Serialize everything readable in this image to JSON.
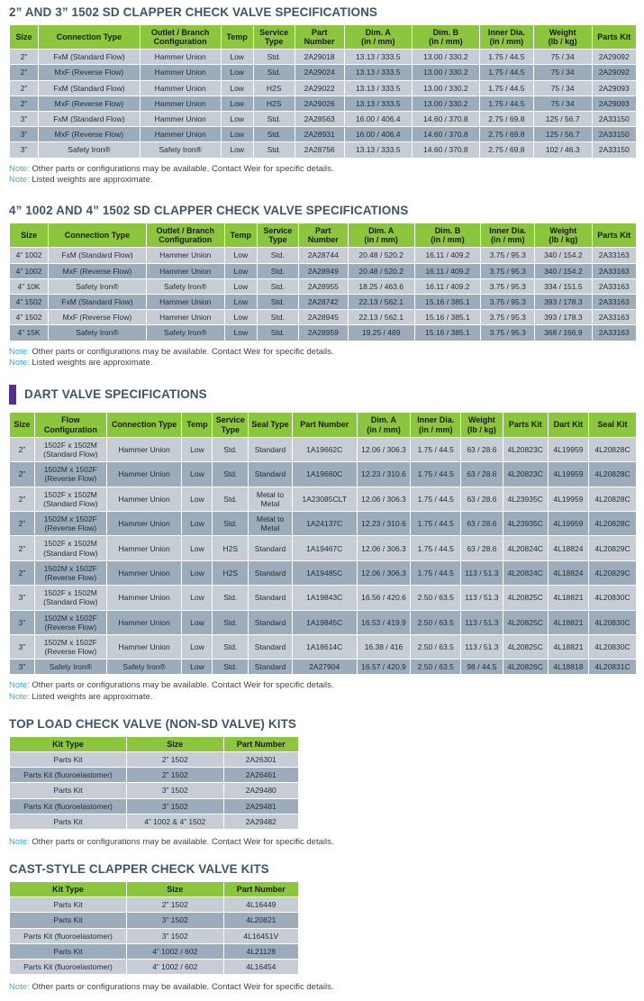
{
  "colors": {
    "header_green": "#8CC63F",
    "row_light": "#C7CDD5",
    "row_dark": "#9DACBB",
    "title": "#3E5568",
    "note_label": "#2BACE2",
    "note_text": "#414042",
    "purple_bar": "#5B2C90"
  },
  "sections": [
    {
      "title": "2” AND 3” 1502 SD CLAPPER CHECK VALVE SPECIFICATIONS",
      "table": {
        "col_widths": [
          4.6,
          16.2,
          12.9,
          5.2,
          6.6,
          7.9,
          10.8,
          10.8,
          8.6,
          9.3,
          7.1
        ],
        "headers": [
          "Size",
          "Connection Type",
          "Outlet / Branch\nConfiguration",
          "Temp",
          "Service\nType",
          "Part\nNumber",
          "Dim. A\n(in / mm)",
          "Dim. B\n(in / mm)",
          "Inner Dia.\n(in / mm)",
          "Weight\n(lb / kg)",
          "Parts Kit"
        ],
        "rows": [
          [
            "2”",
            "FxM (Standard Flow)",
            "Hammer Union",
            "Low",
            "Std.",
            "2A29018",
            "13.13 / 333.5",
            "13.00 / 330.2",
            "1.75 / 44.5",
            "75 / 34",
            "2A29092"
          ],
          [
            "2”",
            "MxF (Reverse Flow)",
            "Hammer Union",
            "Low",
            "Std.",
            "2A29024",
            "13.13 / 333.5",
            "13.00 / 330.2",
            "1.75 / 44.5",
            "75 / 34",
            "2A29092"
          ],
          [
            "2”",
            "FxM (Standard Flow)",
            "Hammer Union",
            "Low",
            "H2S",
            "2A29022",
            "13.13 / 333.5",
            "13.00 / 330.2",
            "1.75 / 44.5",
            "75 / 34",
            "2A29093"
          ],
          [
            "2”",
            "MxF (Reverse Flow)",
            "Hammer Union",
            "Low",
            "H2S",
            "2A29026",
            "13.13 / 333.5",
            "13.00 / 330.2",
            "1.75 / 44.5",
            "75 / 34",
            "2A29093"
          ],
          [
            "3”",
            "FxM (Standard Flow)",
            "Hammer Union",
            "Low",
            "Std.",
            "2A28563",
            "16.00 / 406.4",
            "14.60 / 370.8",
            "2.75 / 69.8",
            "125 / 56.7",
            "2A33150"
          ],
          [
            "3”",
            "MxF (Reverse Flow)",
            "Hammer Union",
            "Low",
            "Std.",
            "2A28931",
            "16.00 / 406.4",
            "14.60 / 370.8",
            "2.75 / 69.8",
            "125 / 56.7",
            "2A33150"
          ],
          [
            "3”",
            "Safety Iron®",
            "Safety Iron®",
            "Low",
            "Std.",
            "2A28756",
            "13.13 / 333.5",
            "14.60 / 370.8",
            "2.75 / 69.8",
            "102 / 46.3",
            "2A33150"
          ]
        ]
      },
      "notes": [
        {
          "label": "Note:",
          "text": " Other parts or configurations may be available. Contact Weir for specific details."
        },
        {
          "label": "Note:",
          "text": " Listed weights are approximate."
        }
      ]
    },
    {
      "title": "4” 1002 AND 4” 1502 SD CLAPPER CHECK VALVE SPECIFICATIONS",
      "table": {
        "col_widths": [
          6.2,
          15.6,
          12.5,
          5.2,
          6.6,
          7.9,
          10.6,
          10.6,
          8.6,
          9.1,
          7.1
        ],
        "headers": [
          "Size",
          "Connection Type",
          "Outlet / Branch\nConfiguration",
          "Temp",
          "Service\nType",
          "Part\nNumber",
          "Dim. A\n(in / mm)",
          "Dim. B\n(in / mm)",
          "Inner Dia.\n(in / mm)",
          "Weight\n(lb / kg)",
          "Parts Kit"
        ],
        "rows": [
          [
            "4” 1002",
            "FxM (Standard Flow)",
            "Hammer Union",
            "Low",
            "Std.",
            "2A28744",
            "20.48 / 520.2",
            "16.11 / 409.2",
            "3.75 / 95.3",
            "340 / 154.2",
            "2A33163"
          ],
          [
            "4” 1002",
            "MxF (Reverse Flow)",
            "Hammer Union",
            "Low",
            "Std.",
            "2A28949",
            "20.48 / 520.2",
            "16.11 / 409.2",
            "3.75 / 95.3",
            "340 / 154.2",
            "2A33163"
          ],
          [
            "4” 10K",
            "Safety Iron®",
            "Safety Iron®",
            "Low",
            "Std.",
            "2A28955",
            "18.25 / 463.6",
            "16.11 / 409.2",
            "3.75 / 95.3",
            "334 / 151.5",
            "2A33163"
          ],
          [
            "4” 1502",
            "FxM (Standard Flow)",
            "Hammer Union",
            "Low",
            "Std.",
            "2A28742",
            "22.13 / 562.1",
            "15.16 / 385.1",
            "3.75 / 95.3",
            "393 / 178.3",
            "2A33163"
          ],
          [
            "4” 1502",
            "MxF (Reverse Flow)",
            "Hammer Union",
            "Low",
            "Std.",
            "2A28945",
            "22.13 / 562.1",
            "15.16 / 385.1",
            "3.75 / 95.3",
            "393 / 178.3",
            "2A33163"
          ],
          [
            "4” 15K",
            "Safety Iron®",
            "Safety Iron®",
            "Low",
            "Std.",
            "2A28959",
            "19.25 / 489",
            "15.16 / 385.1",
            "3.75 / 95.3",
            "368 / 166.9",
            "2A33163"
          ]
        ]
      },
      "notes": [
        {
          "label": "Note:",
          "text": " Other parts or configurations may be available. Contact Weir for specific details."
        },
        {
          "label": "Note:",
          "text": " Listed weights are approximate."
        }
      ]
    },
    {
      "title": "DART VALVE SPECIFICATIONS",
      "table": {
        "col_widths": [
          4.0,
          11.5,
          12.0,
          4.9,
          5.7,
          7.0,
          10.3,
          8.6,
          8.0,
          6.7,
          7.2,
          6.5,
          7.6
        ],
        "headers": [
          "Size",
          "Flow\nConfiguration",
          "Connection Type",
          "Temp",
          "Service\nType",
          "Seal Type",
          "Part Number",
          "Dim. A\n(in / mm)",
          "Inner Dia.\n(in / mm)",
          "Weight\n(lb / kg)",
          "Parts Kit",
          "Dart Kit",
          "Seal Kit"
        ],
        "rows": [
          [
            "2”",
            "1502F x 1502M\n(Standard Flow)",
            "Hammer Union",
            "Low",
            "Std.",
            "Standard",
            "1A19662C",
            "12.06 / 306.3",
            "1.75 / 44.5",
            "63 / 28.6",
            "4L20823C",
            "4L19959",
            "4L20828C"
          ],
          [
            "2”",
            "1502M x 1502F\n(Reverse Flow)",
            "Hammer Union",
            "Low",
            "Std.",
            "Standard",
            "1A19660C",
            "12.23 / 310.6",
            "1.75 / 44.5",
            "63 / 28.6",
            "4L20823C",
            "4L19959",
            "4L20828C"
          ],
          [
            "2”",
            "1502F x 1502M\n(Standard Flow)",
            "Hammer Union",
            "Low",
            "Std.",
            "Metal to\nMetal",
            "1A23085CLT",
            "12.06 / 306.3",
            "1.75 / 44.5",
            "63 / 28.6",
            "4L23935C",
            "4L19959",
            "4L20828C"
          ],
          [
            "2”",
            "1502M x 1502F\n(Reverse Flow)",
            "Hammer Union",
            "Low",
            "Std.",
            "Metal to\nMetal",
            "1A24137C",
            "12.23 / 310.6",
            "1.75 / 44.5",
            "63 / 28.6",
            "4L23935C",
            "4L19959",
            "4L20828C"
          ],
          [
            "2”",
            "1502F x 1502M\n(Standard Flow)",
            "Hammer Union",
            "Low",
            "H2S",
            "Standard",
            "1A19467C",
            "12.06 / 306.3",
            "1.75 / 44.5",
            "63 / 28.6",
            "4L20824C",
            "4L18824",
            "4L20829C"
          ],
          [
            "2”",
            "1502M x 1502F\n(Reverse Flow)",
            "Hammer Union",
            "Low",
            "H2S",
            "Standard",
            "1A19485C",
            "12.06 / 306.3",
            "1.75 / 44.5",
            "113 / 51.3",
            "4L20824C",
            "4L18824",
            "4L20829C"
          ],
          [
            "3”",
            "1502F x 1502M\n(Standard Flow)",
            "Hammer Union",
            "Low",
            "Std.",
            "Standard",
            "1A19843C",
            "16.56 / 420.6",
            "2.50 / 63.5",
            "113 / 51.3",
            "4L20825C",
            "4L18821",
            "4L20830C"
          ],
          [
            "3”",
            "1502M x 1502F\n(Reverse Flow)",
            "Hammer Union",
            "Low",
            "Std.",
            "Standard",
            "1A19845C",
            "16.53 / 419.9",
            "2.50 / 63.5",
            "113 / 51.3",
            "4L20825C",
            "4L18821",
            "4L20830C"
          ],
          [
            "3”",
            "1502M x 1502F\n(Reverse Flow)",
            "Hammer Union",
            "Low",
            "Std.",
            "Standard",
            "1A18614C",
            "16.38 / 416",
            "2.50 / 63.5",
            "113 / 51.3",
            "4L20825C",
            "4L18821",
            "4L20830C"
          ],
          [
            "3”",
            "Safety Iron®",
            "Safety Iron®",
            "Low",
            "Std.",
            "Standard",
            "2A27904",
            "16.57 / 420.9",
            "2.50 / 63.5",
            "98 / 44.5",
            "4L20826C",
            "4L18818",
            "4L20831C"
          ]
        ]
      },
      "notes": [
        {
          "label": "Note:",
          "text": " Other parts or configurations may be available. Contact Weir for specific details."
        },
        {
          "label": "Note:",
          "text": " Listed weights are approximate."
        }
      ]
    },
    {
      "title": "TOP LOAD CHECK VALVE (NON-SD VALVE) KITS",
      "table": {
        "col_widths": [
          40.5,
          33.5,
          26.0
        ],
        "headers": [
          "Kit Type",
          "Size",
          "Part Number"
        ],
        "rows": [
          [
            "Parts Kit",
            "2” 1502",
            "2A26301"
          ],
          [
            "Parts Kit (fluoroelastomer)",
            "2” 1502",
            "2A26461"
          ],
          [
            "Parts Kit",
            "3” 1502",
            "2A29480"
          ],
          [
            "Parts Kit (fluoroelastomer)",
            "3” 1502",
            "2A29481"
          ],
          [
            "Parts Kit",
            "4” 1002 & 4” 1502",
            "2A29482"
          ]
        ]
      },
      "notes": [
        {
          "label": "Note:",
          "text": " Other parts or configurations may be available. Contact Weir for specific details."
        }
      ]
    },
    {
      "title": "CAST-STYLE CLAPPER CHECK VALVE KITS",
      "table": {
        "col_widths": [
          40.5,
          33.5,
          26.0
        ],
        "headers": [
          "Kit Type",
          "Size",
          "Part Number"
        ],
        "rows": [
          [
            "Parts Kit",
            "2” 1502",
            "4L16449"
          ],
          [
            "Parts Kit",
            "3” 1502",
            "4L20821"
          ],
          [
            "Parts Kit (fluoroelastomer)",
            "3” 1502",
            "4L16451V"
          ],
          [
            "Parts Kit",
            "4” 1002 / 602",
            "4L21128"
          ],
          [
            "Parts Kit (fluoroelastomer)",
            "4” 1002 / 602",
            "4L16454"
          ]
        ]
      },
      "notes": [
        {
          "label": "Note:",
          "text": " Other parts or configurations may be available. Contact Weir for specific details."
        }
      ]
    }
  ]
}
